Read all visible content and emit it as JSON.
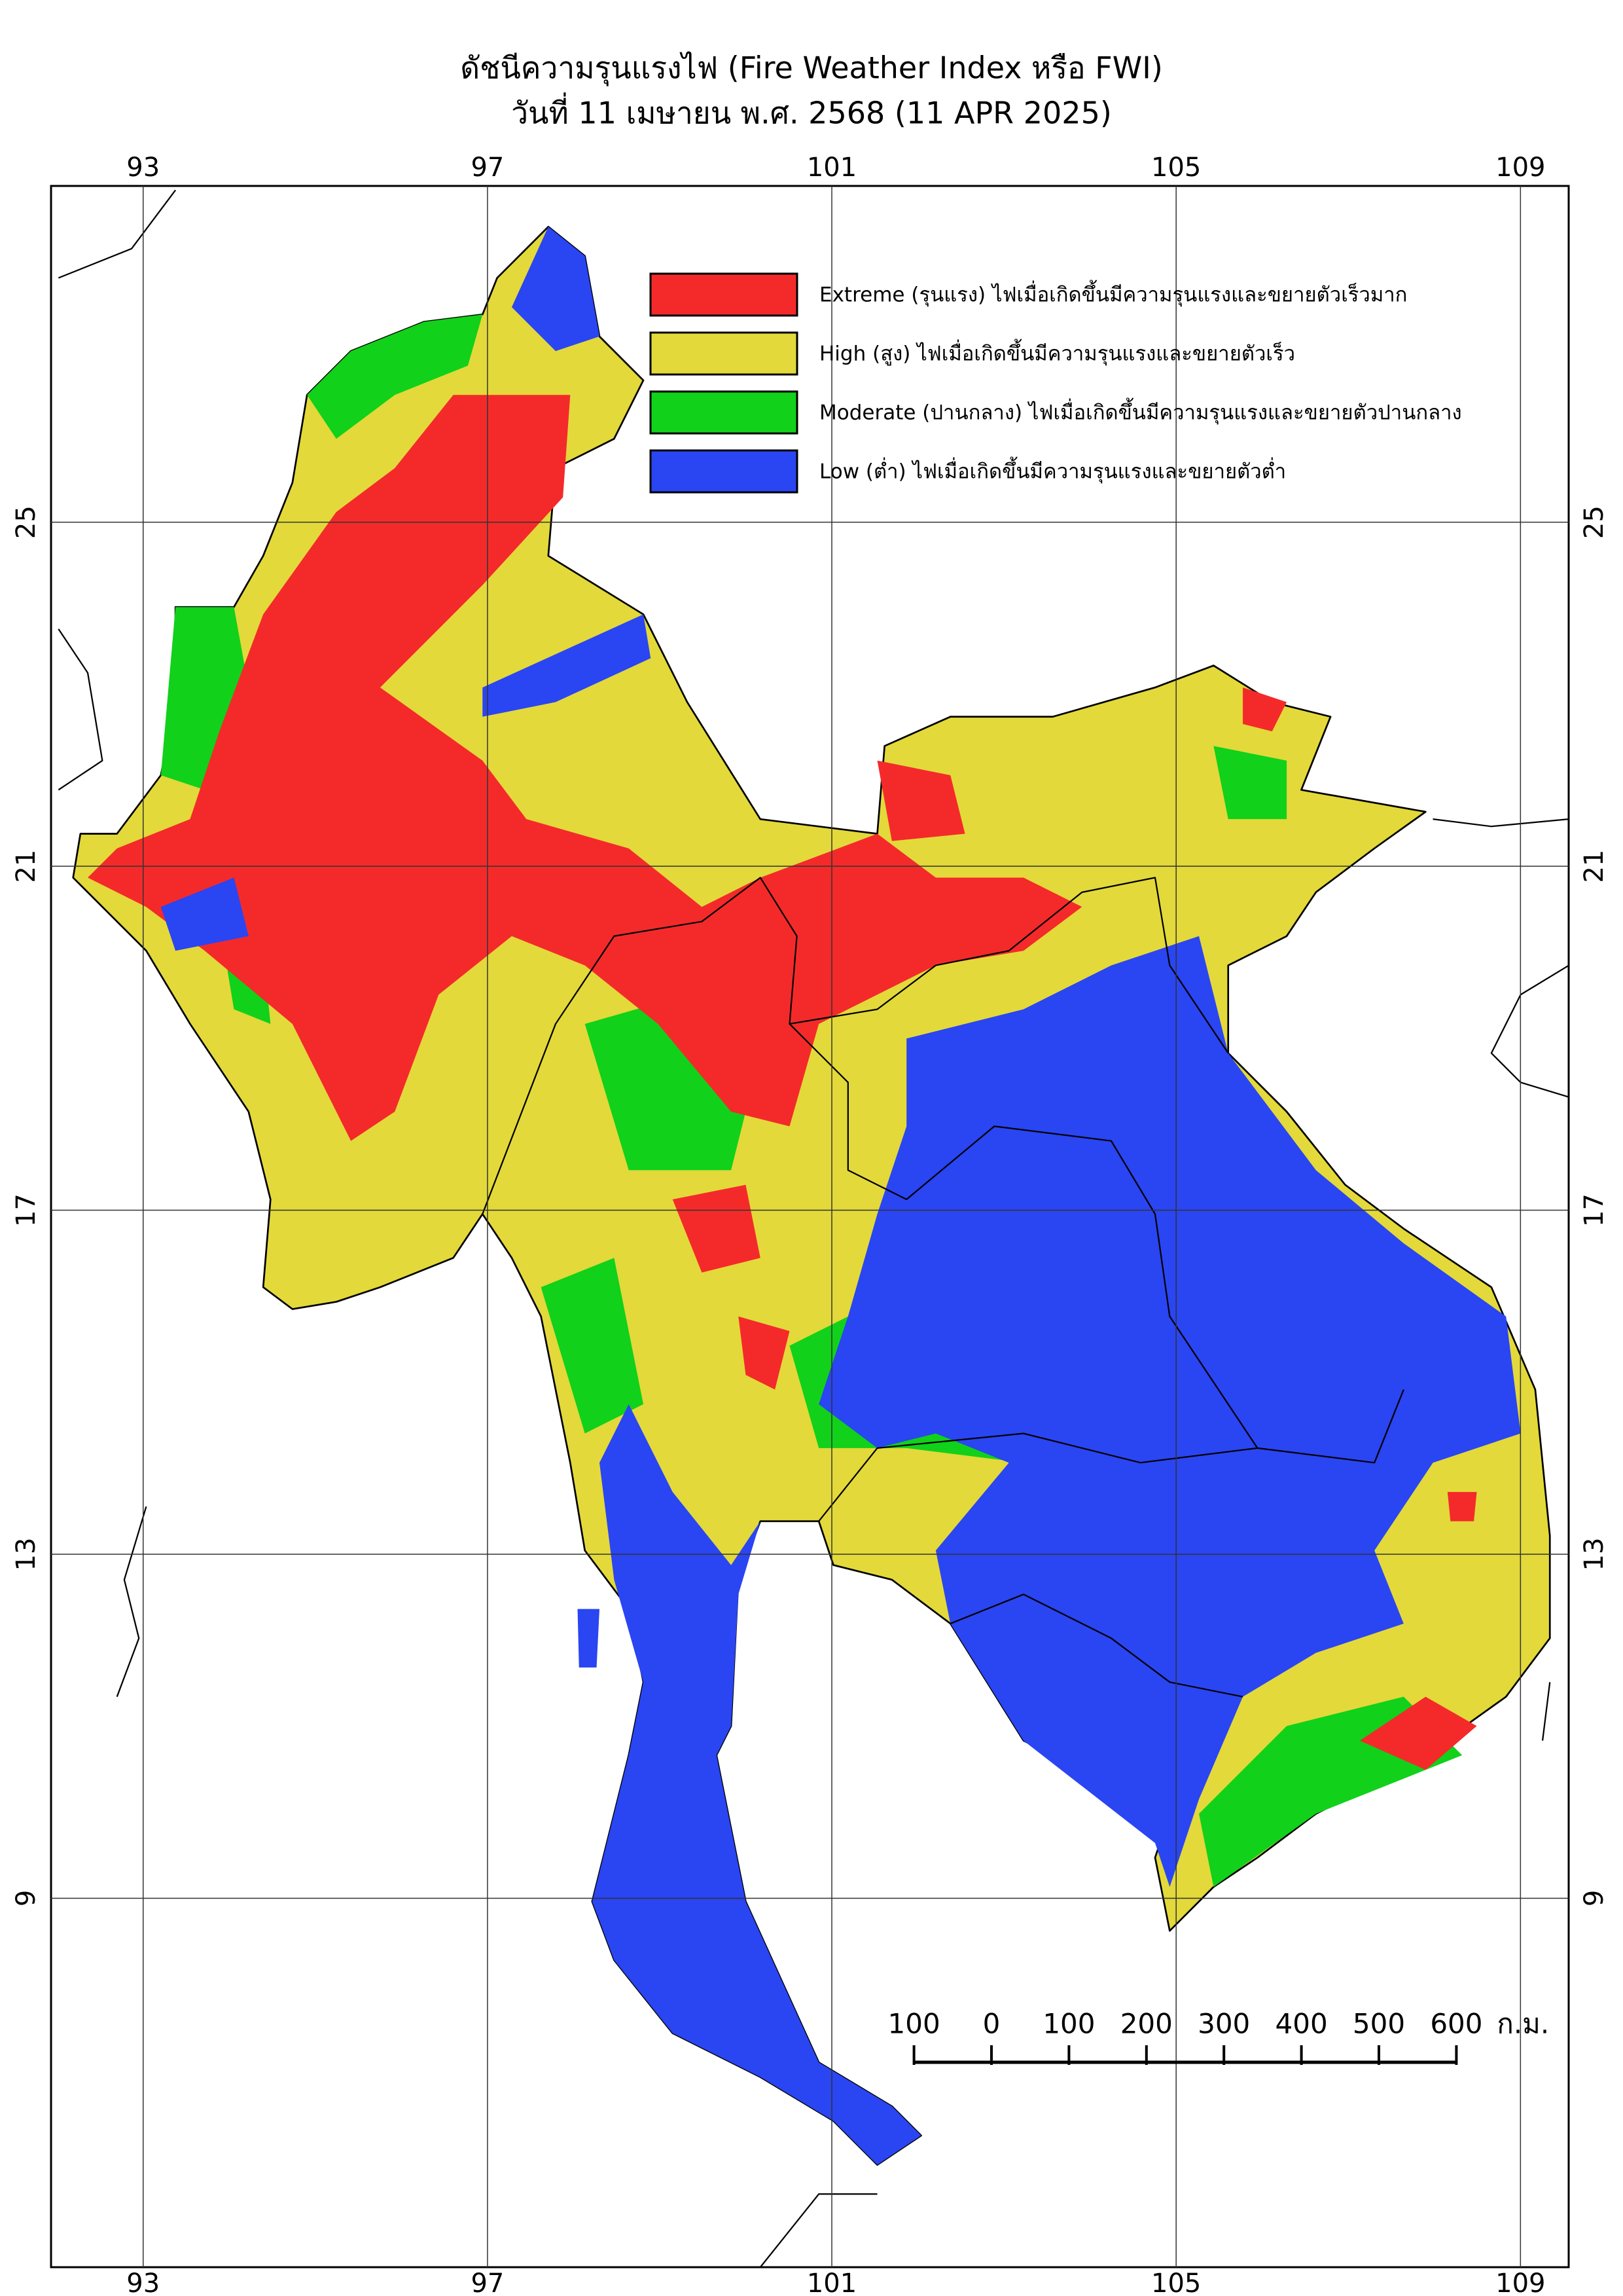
{
  "chart_data": {
    "type": "map",
    "title": "ดัชนีความรุนแรงไฟ (Fire Weather Index หรือ FWI)",
    "subtitle": "วันที่ 11 เมษายน พ.ศ. 2568 (11 APR 2025)",
    "xlim": [
      91.93,
      109.56
    ],
    "ylim": [
      4.71,
      28.91
    ],
    "xticks": [
      93,
      97,
      101,
      105,
      109
    ],
    "yticks": [
      25,
      21,
      17,
      13,
      9
    ],
    "grid": true,
    "legend": [
      {
        "name": "Extreme (รุนแรง) ไฟเมื่อเกิดขึ้นมีความรุนแรงและขยายตัวเร็วมาก",
        "color": "#f42a2a"
      },
      {
        "name": "High (สูง) ไฟเมื่อเกิดขึ้นมีความรุนแรงและขยายตัวเร็ว",
        "color": "#e3d93a"
      },
      {
        "name": "Moderate (ปานกลาง) ไฟเมื่อเกิดขึ้นมีความรุนแรงและขยายตัวปานกลาง",
        "color": "#11d11a"
      },
      {
        "name": "Low (ต่ำ) ไฟเมื่อเกิดขึ้นมีความรุนแรงและขยายตัวต่ำ",
        "color": "#2a45f2"
      }
    ],
    "scale_bar": {
      "ticks": [
        {
          "value": -100,
          "label": "100"
        },
        0,
        100,
        200,
        300,
        400,
        500,
        600
      ],
      "unit": "ก.ม."
    }
  }
}
